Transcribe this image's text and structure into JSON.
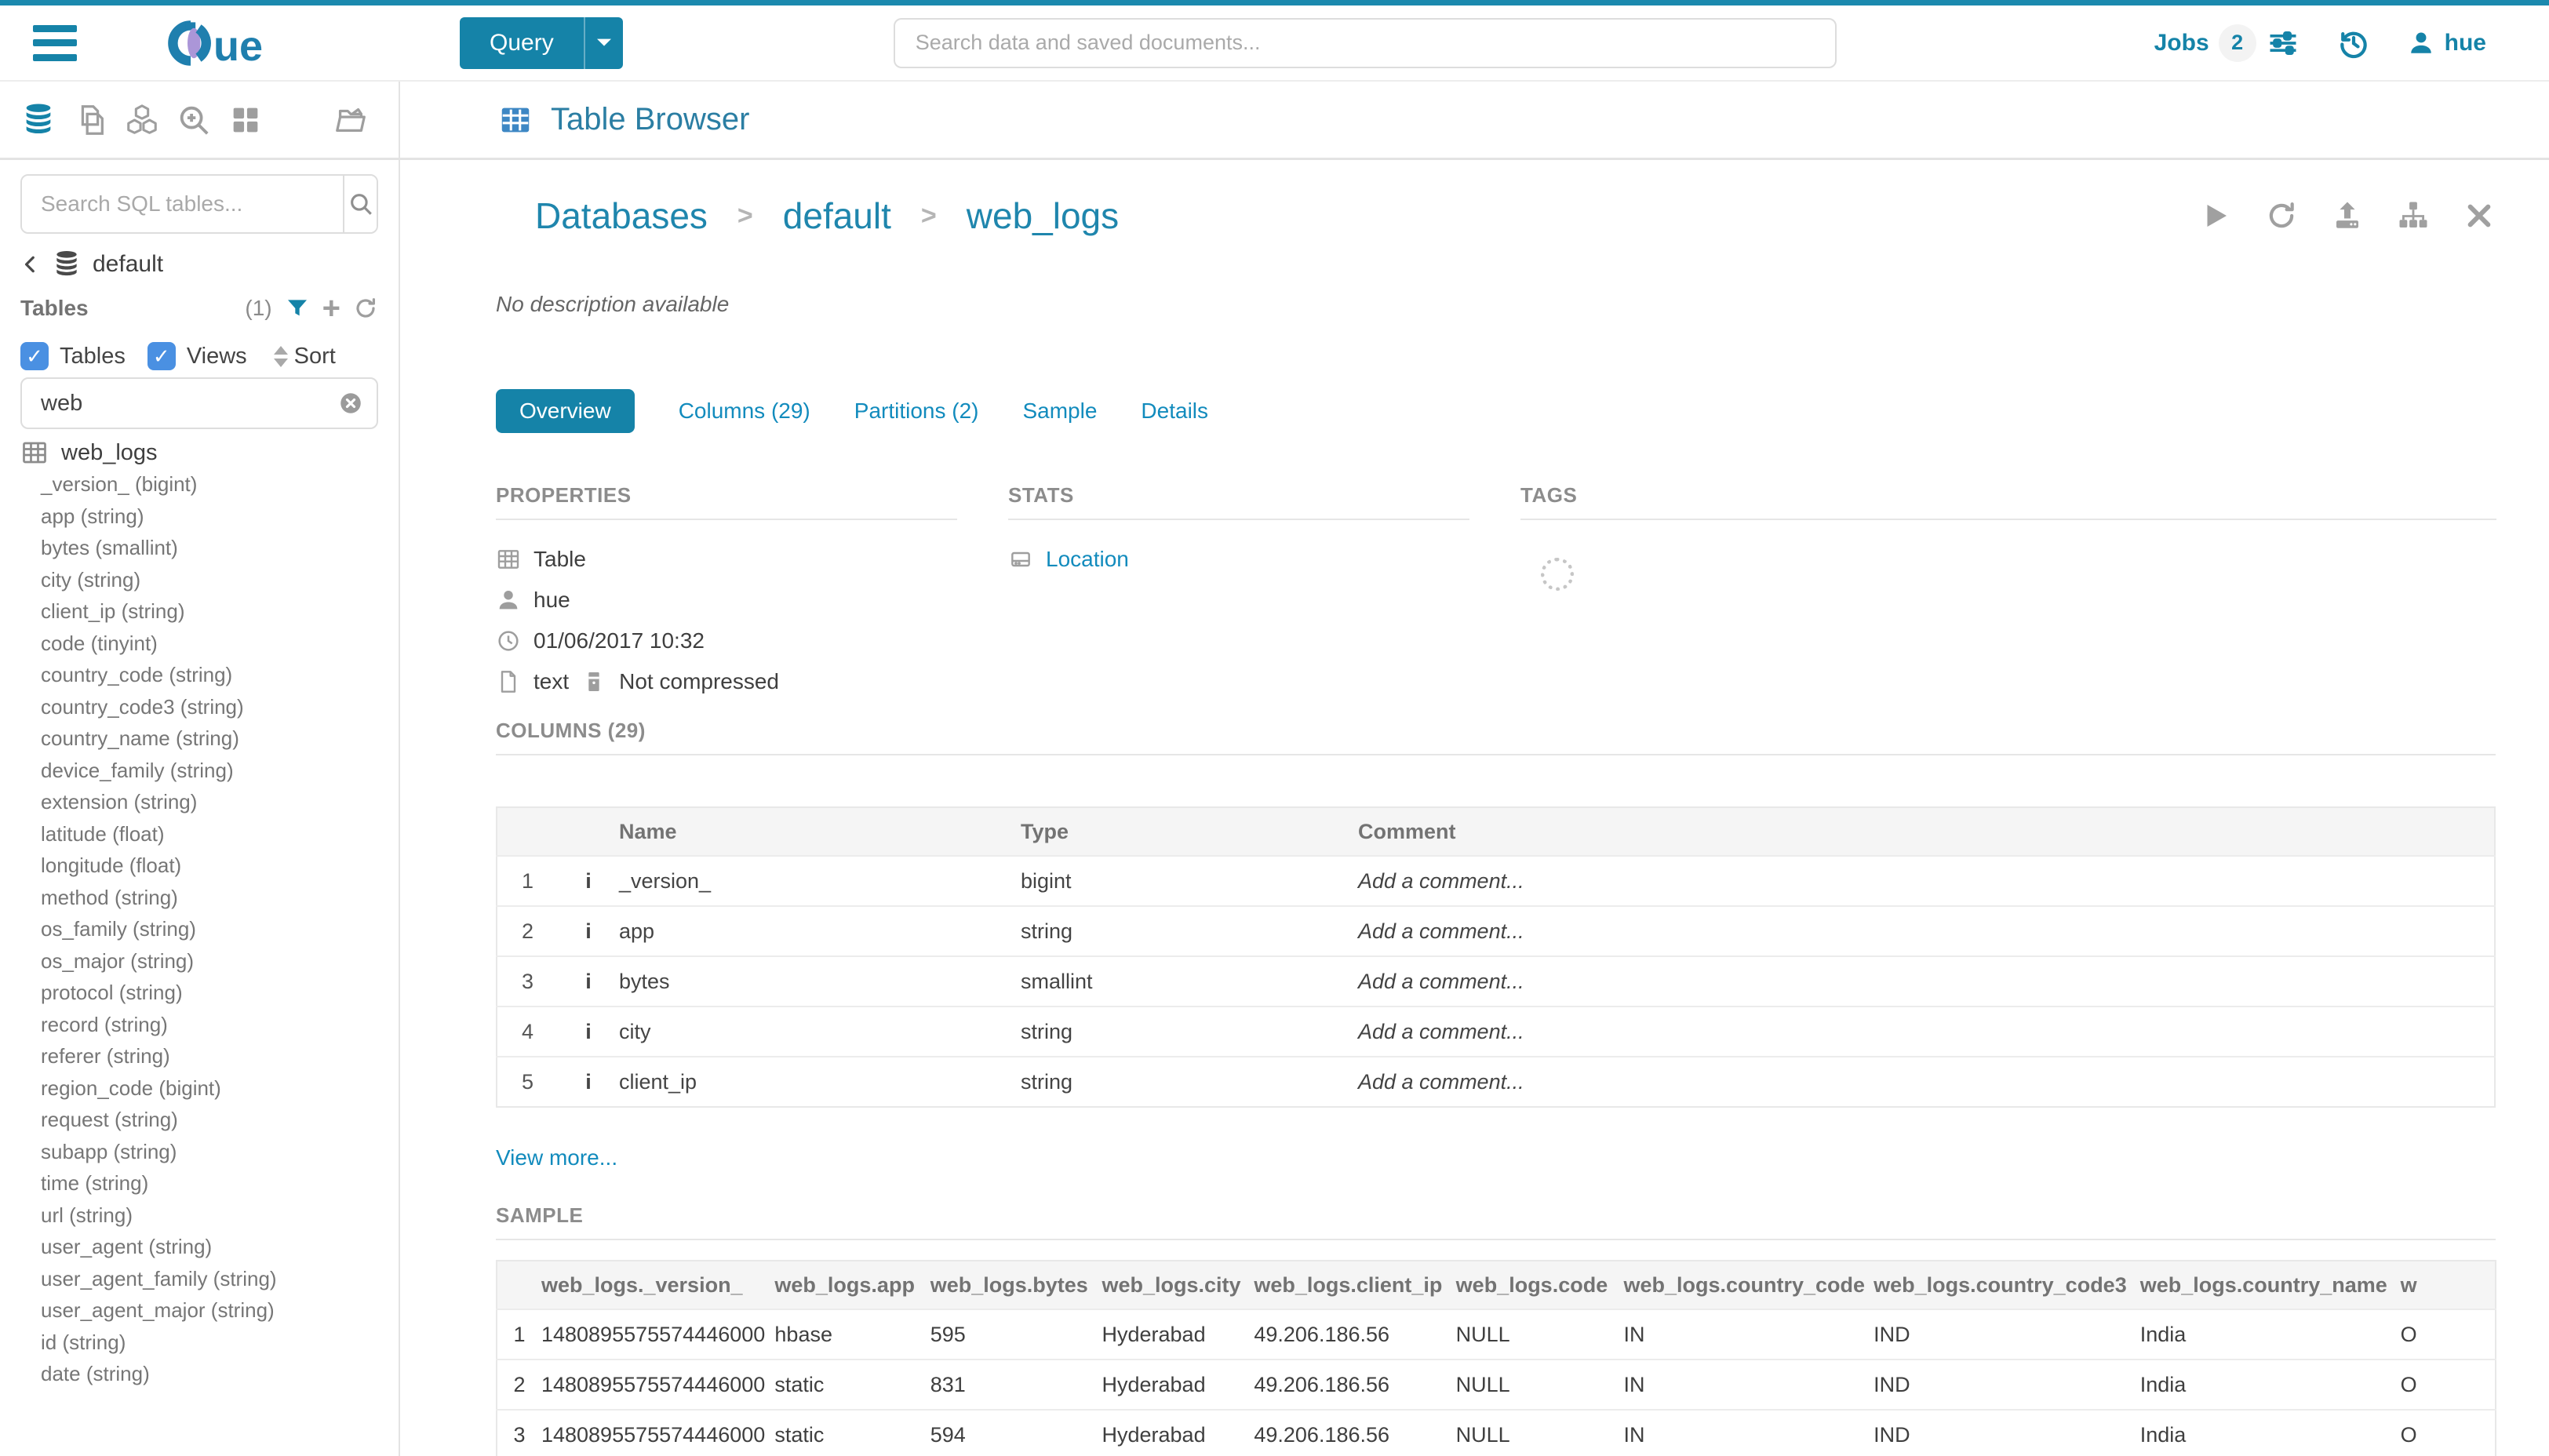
{
  "colors": {
    "primary": "#1583a8",
    "link": "#128bbd",
    "checkbox": "#4a90e2",
    "top_border": "#1b89ae"
  },
  "topbar": {
    "logo": "hue",
    "query_button": "Query",
    "search_placeholder": "Search data and saved documents...",
    "jobs_label": "Jobs",
    "jobs_count": "2",
    "username": "hue"
  },
  "sidebar": {
    "search_placeholder": "Search SQL tables...",
    "database": "default",
    "tables_label": "Tables",
    "tables_count": "(1)",
    "filter_tables_label": "Tables",
    "filter_views_label": "Views",
    "sort_label": "Sort",
    "filter_value": "web",
    "table_name": "web_logs",
    "columns": [
      "_version_ (bigint)",
      "app (string)",
      "bytes (smallint)",
      "city (string)",
      "client_ip (string)",
      "code (tinyint)",
      "country_code (string)",
      "country_code3 (string)",
      "country_name (string)",
      "device_family (string)",
      "extension (string)",
      "latitude (float)",
      "longitude (float)",
      "method (string)",
      "os_family (string)",
      "os_major (string)",
      "protocol (string)",
      "record (string)",
      "referer (string)",
      "region_code (bigint)",
      "request (string)",
      "subapp (string)",
      "time (string)",
      "url (string)",
      "user_agent (string)",
      "user_agent_family (string)",
      "user_agent_major (string)",
      "id (string)",
      "date (string)"
    ]
  },
  "header": {
    "app_title": "Table Browser"
  },
  "main": {
    "breadcrumb": [
      "Databases",
      "default",
      "web_logs"
    ],
    "description": "No description available",
    "tabs": [
      {
        "label": "Overview",
        "active": true
      },
      {
        "label": "Columns (29)",
        "active": false
      },
      {
        "label": "Partitions (2)",
        "active": false
      },
      {
        "label": "Sample",
        "active": false
      },
      {
        "label": "Details",
        "active": false
      }
    ],
    "properties": {
      "title": "PROPERTIES",
      "type": "Table",
      "owner": "hue",
      "created": "01/06/2017 10:32",
      "format": "text",
      "compression": "Not compressed"
    },
    "stats": {
      "title": "STATS",
      "location_label": "Location"
    },
    "tags": {
      "title": "TAGS"
    },
    "columns_section": {
      "title": "COLUMNS (29)",
      "headers": {
        "name": "Name",
        "type": "Type",
        "comment": "Comment"
      },
      "rows": [
        {
          "num": "1",
          "name": "_version_",
          "type": "bigint",
          "comment": "Add a comment..."
        },
        {
          "num": "2",
          "name": "app",
          "type": "string",
          "comment": "Add a comment..."
        },
        {
          "num": "3",
          "name": "bytes",
          "type": "smallint",
          "comment": "Add a comment..."
        },
        {
          "num": "4",
          "name": "city",
          "type": "string",
          "comment": "Add a comment..."
        },
        {
          "num": "5",
          "name": "client_ip",
          "type": "string",
          "comment": "Add a comment..."
        }
      ],
      "view_more": "View more..."
    },
    "sample_section": {
      "title": "SAMPLE",
      "headers": [
        "web_logs._version_",
        "web_logs.app",
        "web_logs.bytes",
        "web_logs.city",
        "web_logs.client_ip",
        "web_logs.code",
        "web_logs.country_code",
        "web_logs.country_code3",
        "web_logs.country_name",
        "w"
      ],
      "rows": [
        [
          "1",
          "1480895575574446000",
          "hbase",
          "595",
          "Hyderabad",
          "49.206.186.56",
          "NULL",
          "IN",
          "IND",
          "India",
          "O"
        ],
        [
          "2",
          "1480895575574446000",
          "static",
          "831",
          "Hyderabad",
          "49.206.186.56",
          "NULL",
          "IN",
          "IND",
          "India",
          "O"
        ],
        [
          "3",
          "1480895575574446000",
          "static",
          "594",
          "Hyderabad",
          "49.206.186.56",
          "NULL",
          "IN",
          "IND",
          "India",
          "O"
        ]
      ]
    }
  }
}
